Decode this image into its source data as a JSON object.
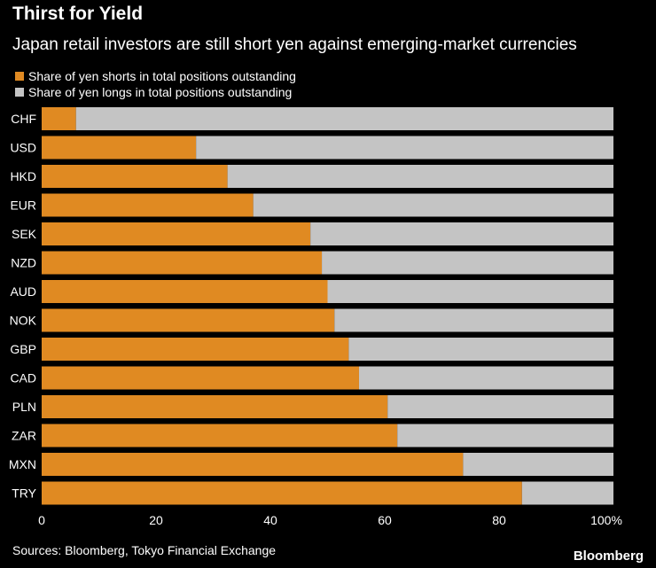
{
  "colors": {
    "shorts": "#e08a22",
    "longs": "#c4c4c4",
    "background": "#000000",
    "text": "#ffffff"
  },
  "chart_data": {
    "type": "bar",
    "orientation": "horizontal",
    "stacked": true,
    "title": "Thirst for Yield",
    "subtitle": "Japan retail investors are still short yen against emerging-market currencies",
    "categories": [
      "CHF",
      "USD",
      "HKD",
      "EUR",
      "SEK",
      "NZD",
      "AUD",
      "NOK",
      "GBP",
      "CAD",
      "PLN",
      "ZAR",
      "MXN",
      "TRY"
    ],
    "series": [
      {
        "name": "Share of yen shorts in total positions outstanding",
        "values": [
          6,
          27,
          32.5,
          37,
          47,
          49,
          50,
          51.2,
          53.7,
          55.5,
          60.5,
          62.2,
          73.7,
          84
        ]
      },
      {
        "name": "Share of yen longs in total positions outstanding",
        "values": [
          94,
          73,
          67.5,
          63,
          53,
          51,
          50,
          48.8,
          46.3,
          44.5,
          39.5,
          37.8,
          26.3,
          16
        ]
      }
    ],
    "xlim": [
      0,
      100
    ],
    "xticks": [
      0,
      20,
      40,
      60,
      80,
      100
    ],
    "xtick_labels": [
      "0",
      "20",
      "40",
      "60",
      "80",
      "100%"
    ],
    "legend_position": "top-left",
    "grid": false
  },
  "footer": {
    "source": "Sources: Bloomberg, Tokyo Financial Exchange",
    "logo": "Bloomberg"
  }
}
